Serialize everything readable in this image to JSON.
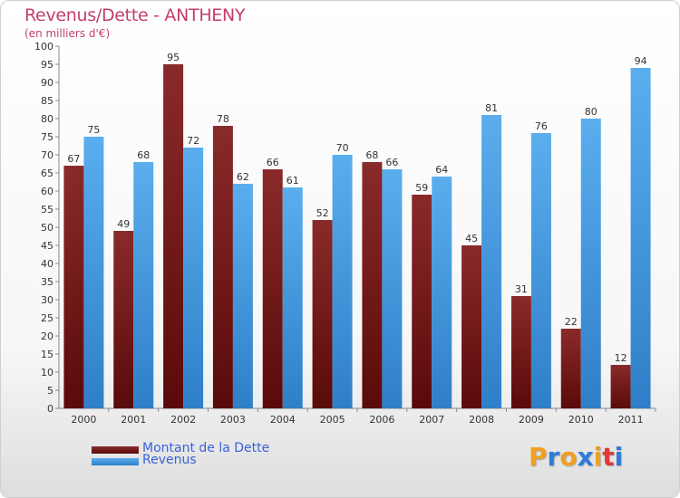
{
  "colors": {
    "dette": "#7a1a1a",
    "revenus": "#4d9ee4"
  },
  "chart_data": {
    "type": "bar",
    "title": "Revenus/Dette - ANTHENY",
    "subtitle": "(en milliers d'€)",
    "categories": [
      "2000",
      "2001",
      "2002",
      "2003",
      "2004",
      "2005",
      "2006",
      "2007",
      "2008",
      "2009",
      "2010",
      "2011"
    ],
    "series": [
      {
        "name": "Montant de la Dette",
        "values": [
          67,
          49,
          95,
          78,
          66,
          52,
          68,
          59,
          45,
          31,
          22,
          12
        ]
      },
      {
        "name": "Revenus",
        "values": [
          75,
          68,
          72,
          62,
          61,
          70,
          66,
          64,
          81,
          76,
          80,
          94
        ]
      }
    ],
    "ylim": [
      0,
      100
    ],
    "yticks": [
      0,
      5,
      10,
      15,
      20,
      25,
      30,
      35,
      40,
      45,
      50,
      55,
      60,
      65,
      70,
      75,
      80,
      85,
      90,
      95,
      100
    ],
    "grid": false,
    "legend": "bottom-left"
  },
  "legend": {
    "dette_label": "Montant de la Dette",
    "revenus_label": "Revenus"
  },
  "logo": {
    "letters": [
      "P",
      "r",
      "o",
      "x",
      "i",
      "t",
      "i"
    ],
    "colors": [
      "#f0a020",
      "#2e7bd8",
      "#f0a020",
      "#2e7bd8",
      "#f0a020",
      "#e03838",
      "#2e7bd8"
    ]
  }
}
